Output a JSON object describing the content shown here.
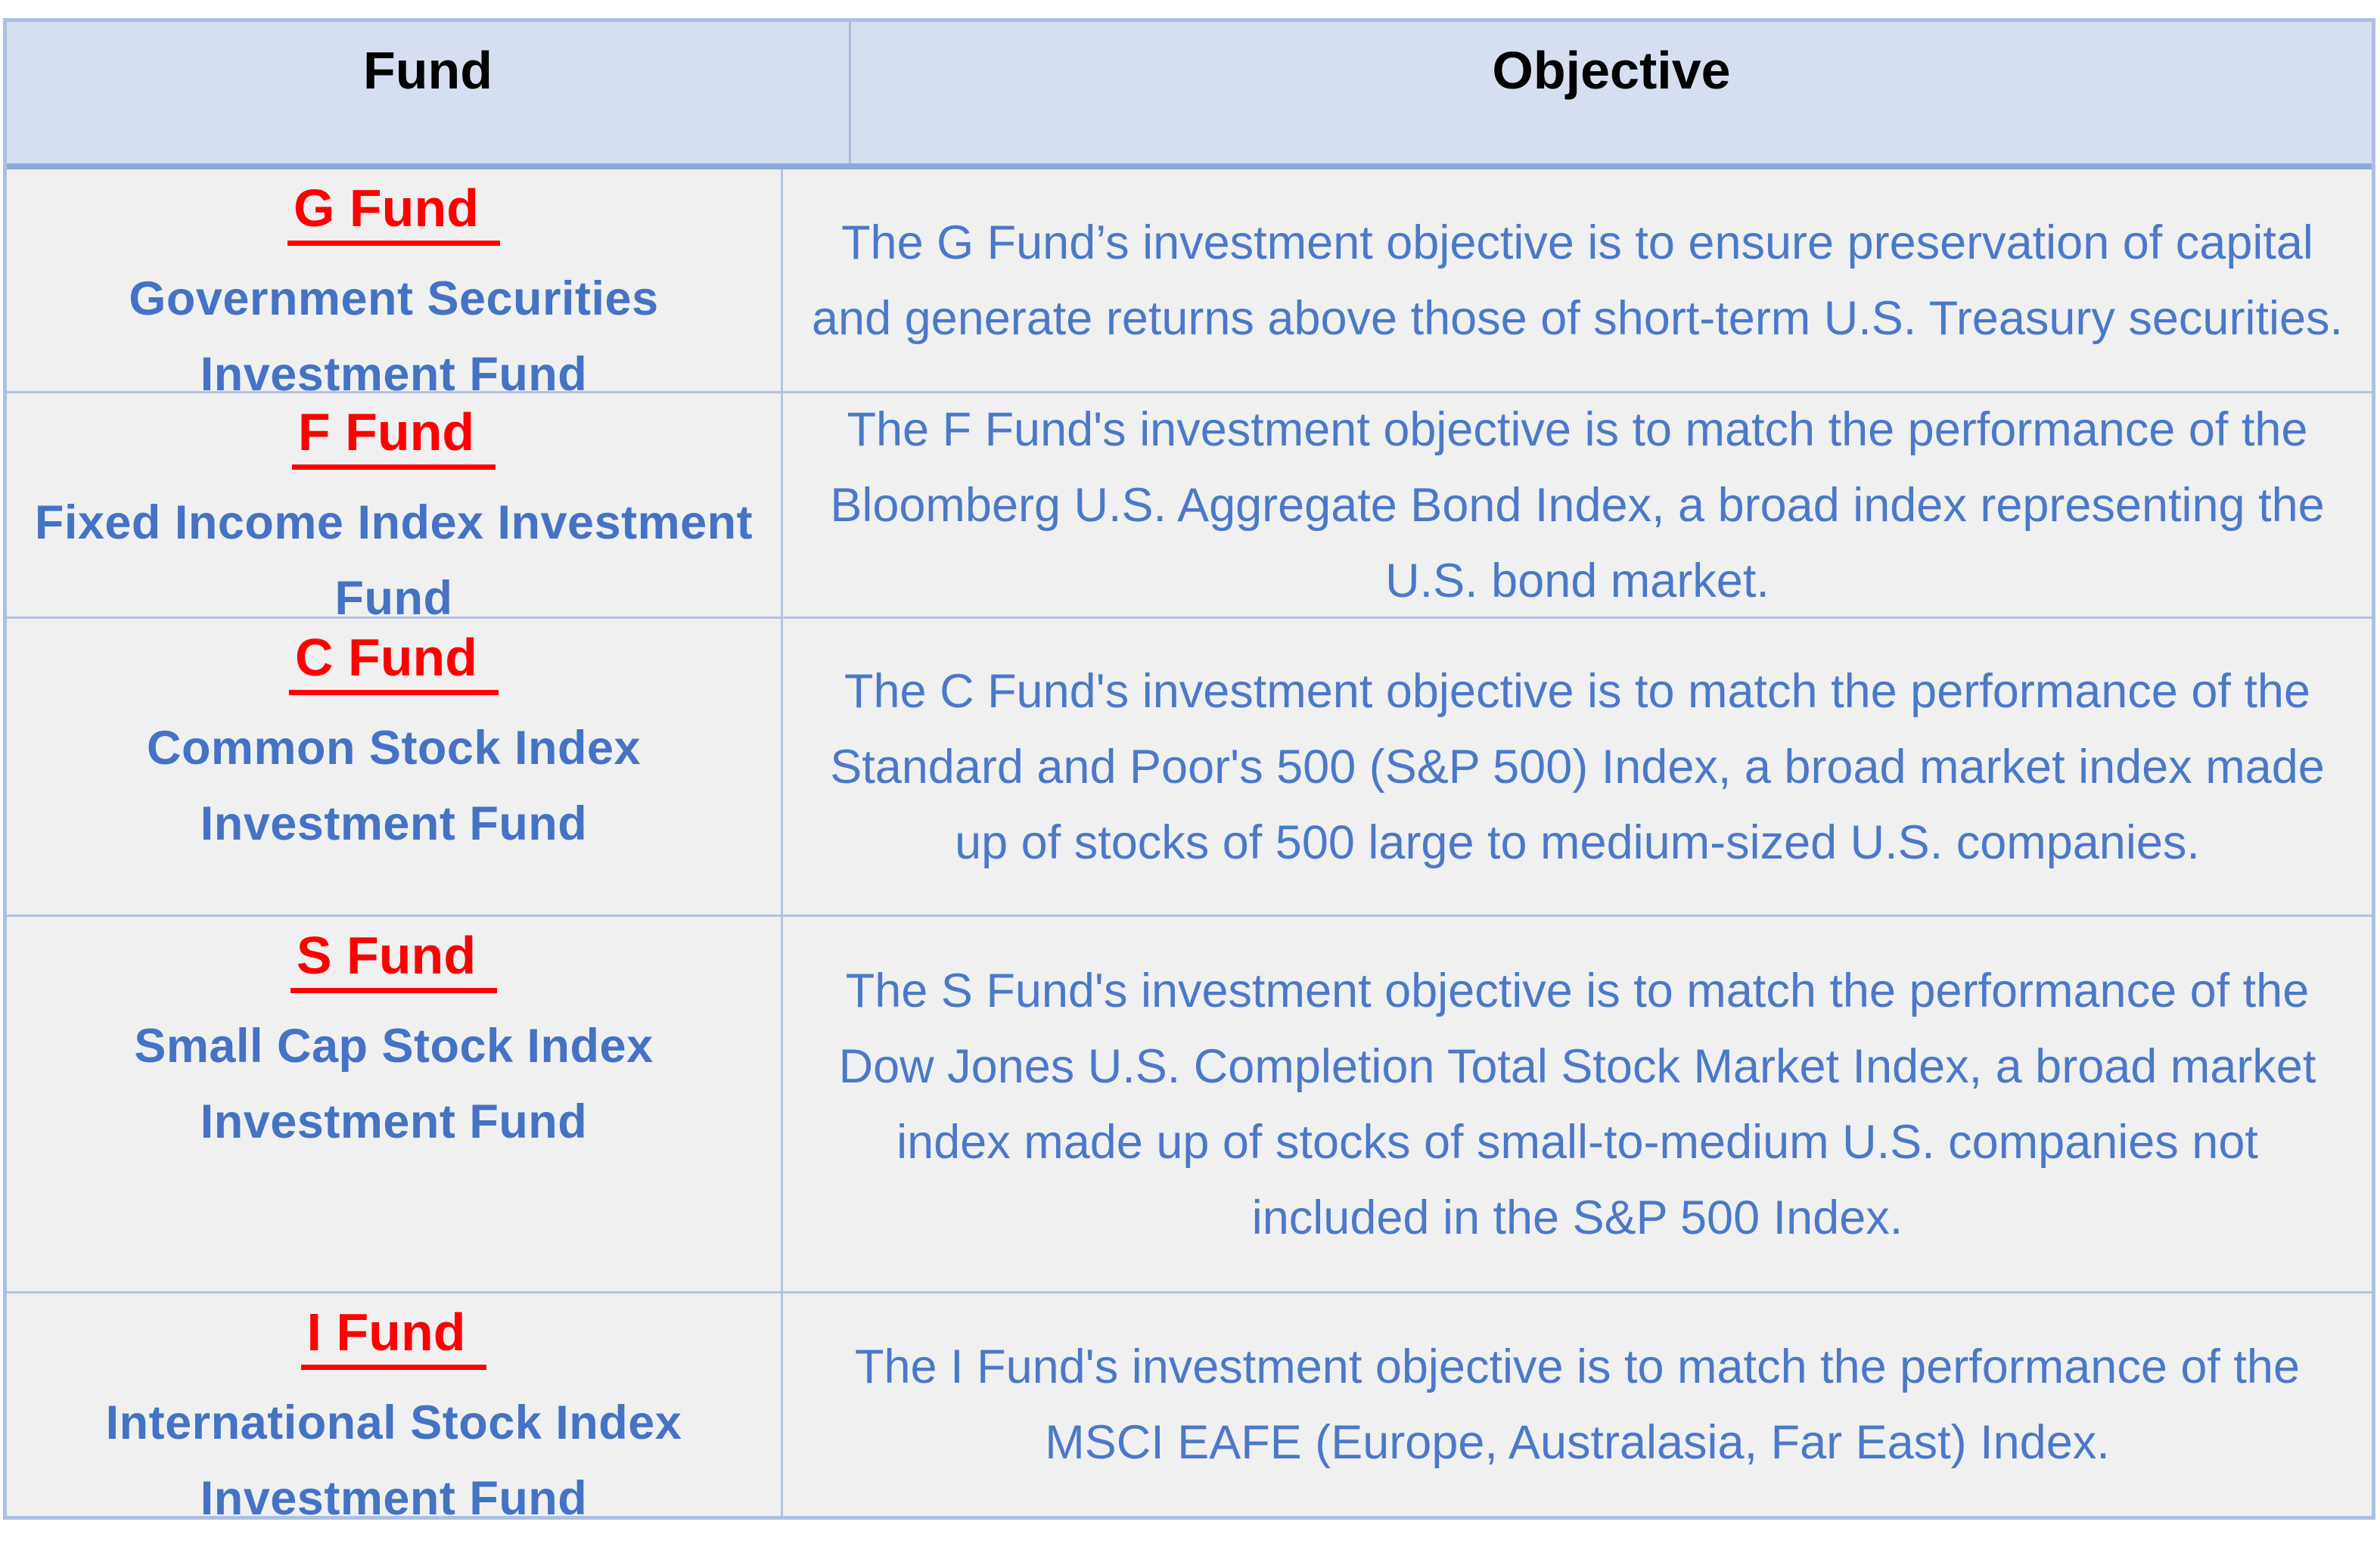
{
  "table": {
    "header": {
      "fund_label": "Fund",
      "objective_label": "Objective"
    },
    "rows": [
      {
        "code": "G Fund",
        "name": "Government Securities Investment Fund",
        "objective": "The G Fund’s investment objective is to ensure preservation of capital and generate returns above those of short-term U.S. Treasury securities."
      },
      {
        "code": "F Fund",
        "name": "Fixed Income Index Investment Fund",
        "objective": "The F Fund's investment objective is to match the performance of the Bloomberg U.S. Aggregate Bond Index, a broad index representing the U.S. bond market."
      },
      {
        "code": "C Fund",
        "name": "Common Stock Index Investment Fund",
        "objective": "The C Fund's investment objective is to match the performance of the Standard and Poor's 500 (S&P 500) Index, a broad market index made up of stocks of 500 large to medium-sized U.S. companies."
      },
      {
        "code": "S Fund",
        "name": "Small Cap Stock Index Investment Fund",
        "objective": "The S Fund's investment objective is to match the performance of the Dow Jones U.S. Completion Total Stock Market Index, a broad market index made up of stocks of small-to-medium U.S. companies not included in the S&P 500 Index."
      },
      {
        "code": "I Fund",
        "name": "International Stock Index Investment Fund",
        "objective": "The I Fund's investment objective is to match the performance of the MSCI EAFE (Europe, Australasia, Far East) Index."
      }
    ],
    "colors": {
      "header_bg": "#d6dff1",
      "body_bg": "#f0f0f1",
      "border": "#b3c2e2",
      "header_rule": "#8ea9d8",
      "fund_code": "#ff0000",
      "fund_name": "#4472c4",
      "objective_text": "#4b78c8"
    }
  }
}
